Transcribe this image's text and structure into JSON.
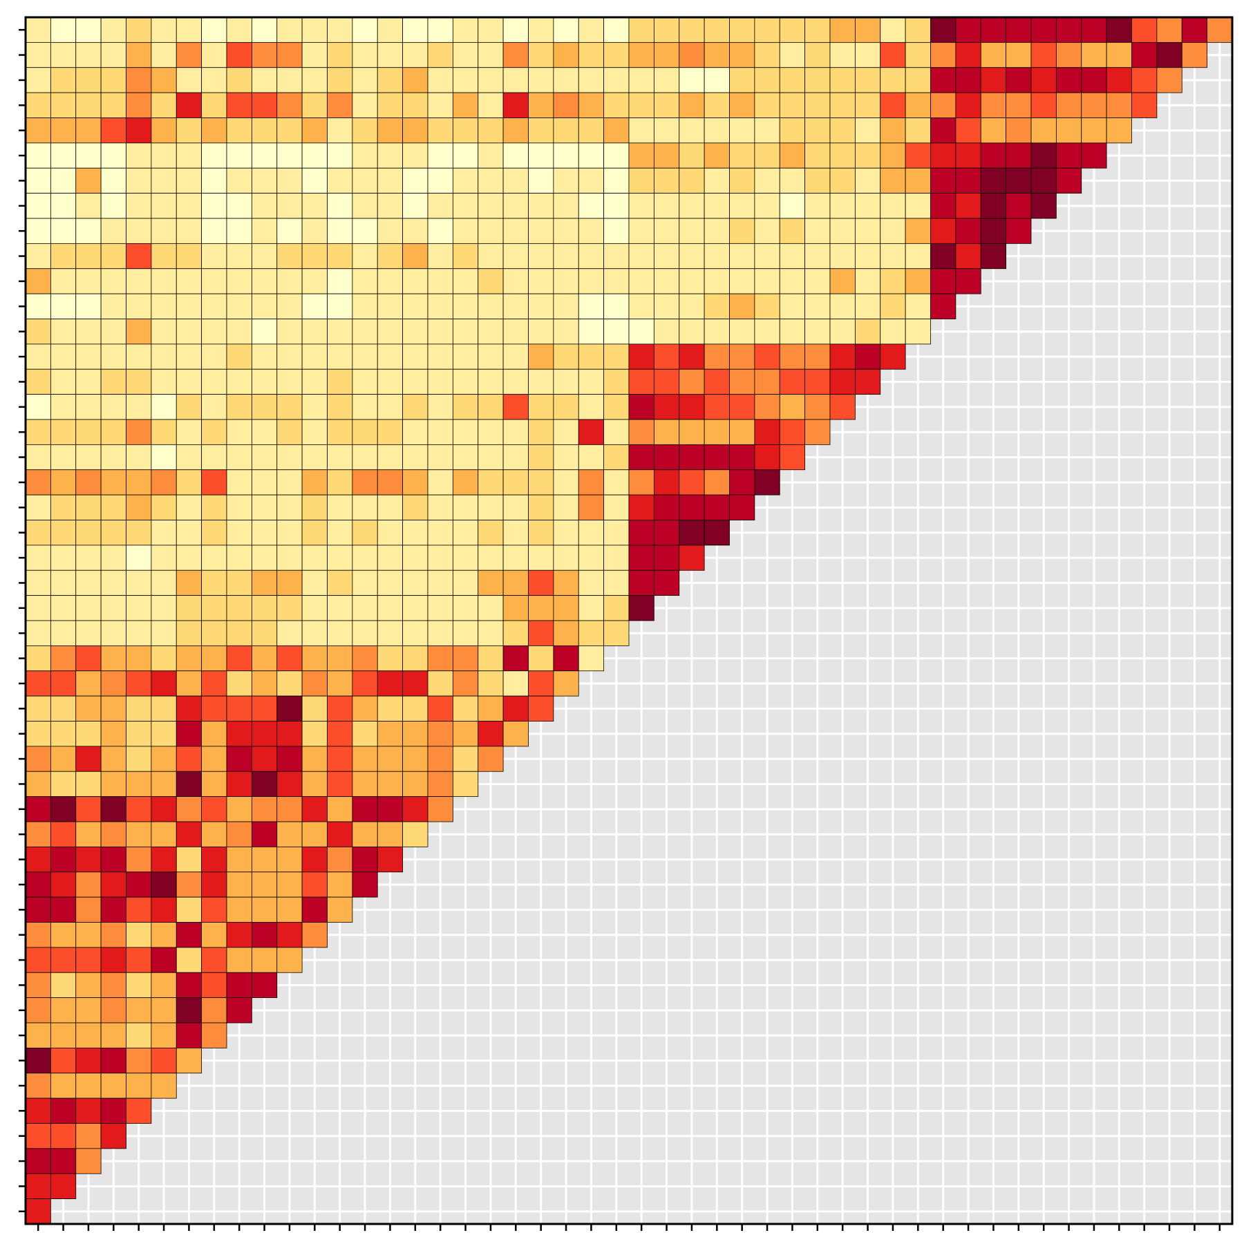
{
  "chart_data": {
    "type": "heatmap",
    "layout": "upper-triangle",
    "grid": true,
    "zlim": [
      1,
      9
    ],
    "colors": [
      "#ffffcc",
      "#ffeda0",
      "#fed976",
      "#feb24c",
      "#fd8d3c",
      "#fc4e2a",
      "#e31a1c",
      "#bd0026",
      "#800026"
    ],
    "values": [
      [
        2,
        1,
        1,
        2,
        3,
        2,
        2,
        1,
        2,
        1,
        2,
        2,
        2,
        1,
        2,
        1,
        1,
        2,
        2,
        1,
        2,
        1,
        2,
        1,
        3,
        3,
        3,
        3,
        3,
        3,
        3,
        3,
        4,
        4,
        2,
        3,
        9,
        8,
        8,
        8,
        8,
        8,
        8,
        9,
        6,
        5,
        8,
        5
      ],
      [
        2,
        2,
        2,
        2,
        4,
        2,
        5,
        2,
        6,
        5,
        5,
        2,
        3,
        2,
        2,
        2,
        3,
        2,
        2,
        5,
        3,
        4,
        3,
        3,
        4,
        4,
        5,
        4,
        4,
        3,
        2,
        3,
        2,
        2,
        6,
        3,
        5,
        7,
        4,
        4,
        6,
        5,
        4,
        4,
        8,
        9,
        5
      ],
      [
        2,
        3,
        3,
        3,
        5,
        4,
        2,
        2,
        3,
        2,
        2,
        2,
        3,
        2,
        3,
        4,
        2,
        2,
        2,
        2,
        2,
        2,
        2,
        2,
        2,
        2,
        1,
        1,
        3,
        3,
        3,
        3,
        3,
        3,
        3,
        3,
        8,
        8,
        7,
        8,
        7,
        8,
        8,
        7,
        6,
        5
      ],
      [
        3,
        3,
        3,
        3,
        5,
        3,
        7,
        3,
        6,
        6,
        5,
        3,
        5,
        2,
        3,
        3,
        2,
        4,
        2,
        7,
        4,
        5,
        4,
        3,
        3,
        3,
        4,
        3,
        4,
        3,
        3,
        3,
        3,
        3,
        6,
        4,
        5,
        7,
        5,
        5,
        6,
        5,
        5,
        5,
        6
      ],
      [
        4,
        4,
        4,
        6,
        7,
        4,
        3,
        4,
        3,
        3,
        3,
        4,
        2,
        3,
        4,
        4,
        3,
        3,
        3,
        4,
        3,
        3,
        3,
        4,
        2,
        2,
        2,
        2,
        2,
        2,
        3,
        3,
        3,
        2,
        4,
        3,
        8,
        6,
        4,
        5,
        4,
        4,
        4,
        4
      ],
      [
        1,
        1,
        1,
        1,
        2,
        2,
        2,
        1,
        1,
        1,
        1,
        1,
        1,
        2,
        2,
        2,
        1,
        1,
        2,
        1,
        1,
        1,
        1,
        1,
        4,
        4,
        3,
        4,
        3,
        3,
        4,
        3,
        3,
        3,
        4,
        6,
        7,
        7,
        8,
        8,
        9,
        8,
        8
      ],
      [
        1,
        1,
        4,
        1,
        2,
        2,
        2,
        1,
        2,
        2,
        2,
        1,
        2,
        2,
        2,
        1,
        1,
        2,
        2,
        2,
        1,
        2,
        2,
        1,
        3,
        3,
        3,
        2,
        3,
        2,
        2,
        3,
        3,
        2,
        4,
        4,
        8,
        8,
        9,
        9,
        9,
        8
      ],
      [
        1,
        1,
        2,
        1,
        2,
        2,
        2,
        1,
        1,
        2,
        2,
        2,
        1,
        2,
        2,
        1,
        2,
        2,
        2,
        2,
        2,
        2,
        1,
        1,
        2,
        2,
        2,
        2,
        2,
        2,
        1,
        2,
        2,
        2,
        2,
        2,
        8,
        7,
        9,
        8,
        9
      ],
      [
        1,
        1,
        1,
        2,
        2,
        2,
        2,
        1,
        1,
        2,
        1,
        2,
        1,
        1,
        2,
        2,
        1,
        2,
        2,
        2,
        2,
        2,
        2,
        1,
        2,
        2,
        2,
        2,
        3,
        2,
        3,
        2,
        2,
        2,
        2,
        4,
        7,
        8,
        9,
        8
      ],
      [
        2,
        3,
        3,
        3,
        6,
        3,
        3,
        2,
        2,
        2,
        3,
        3,
        3,
        2,
        3,
        4,
        2,
        3,
        2,
        2,
        2,
        2,
        2,
        2,
        2,
        2,
        2,
        2,
        2,
        2,
        2,
        2,
        2,
        2,
        2,
        2,
        9,
        7,
        9
      ],
      [
        4,
        2,
        2,
        2,
        2,
        2,
        2,
        2,
        2,
        2,
        2,
        2,
        1,
        2,
        2,
        2,
        2,
        2,
        3,
        2,
        2,
        2,
        2,
        2,
        2,
        2,
        2,
        2,
        2,
        2,
        2,
        2,
        4,
        2,
        3,
        4,
        8,
        8
      ],
      [
        1,
        1,
        1,
        2,
        2,
        2,
        2,
        2,
        2,
        2,
        2,
        1,
        1,
        2,
        2,
        2,
        2,
        2,
        2,
        2,
        2,
        2,
        1,
        1,
        2,
        2,
        2,
        3,
        4,
        3,
        2,
        2,
        2,
        2,
        3,
        2,
        8
      ],
      [
        3,
        2,
        2,
        2,
        4,
        2,
        2,
        2,
        2,
        1,
        2,
        2,
        2,
        2,
        2,
        2,
        2,
        2,
        2,
        2,
        2,
        2,
        1,
        1,
        1,
        2,
        2,
        2,
        2,
        2,
        2,
        2,
        2,
        3,
        2,
        2
      ],
      [
        2,
        2,
        2,
        2,
        2,
        2,
        2,
        2,
        3,
        2,
        2,
        2,
        2,
        2,
        2,
        2,
        2,
        2,
        2,
        2,
        4,
        3,
        3,
        3,
        7,
        6,
        7,
        5,
        5,
        6,
        5,
        5,
        7,
        8,
        7
      ],
      [
        3,
        2,
        2,
        3,
        3,
        2,
        2,
        2,
        2,
        2,
        2,
        2,
        3,
        2,
        2,
        2,
        2,
        2,
        2,
        2,
        2,
        2,
        2,
        3,
        6,
        6,
        5,
        6,
        5,
        5,
        6,
        6,
        7,
        7
      ],
      [
        1,
        2,
        2,
        2,
        2,
        1,
        3,
        2,
        3,
        3,
        3,
        2,
        3,
        2,
        2,
        3,
        2,
        3,
        3,
        6,
        3,
        3,
        2,
        3,
        8,
        7,
        7,
        6,
        6,
        5,
        4,
        5,
        6
      ],
      [
        3,
        3,
        3,
        3,
        5,
        3,
        2,
        3,
        2,
        2,
        3,
        2,
        3,
        3,
        3,
        2,
        2,
        2,
        2,
        2,
        3,
        2,
        7,
        2,
        5,
        4,
        4,
        4,
        4,
        7,
        6,
        5
      ],
      [
        2,
        2,
        2,
        2,
        2,
        1,
        2,
        2,
        2,
        2,
        2,
        2,
        2,
        2,
        2,
        2,
        2,
        2,
        2,
        2,
        3,
        2,
        2,
        3,
        8,
        8,
        8,
        8,
        8,
        7,
        6
      ],
      [
        5,
        4,
        5,
        4,
        4,
        5,
        3,
        6,
        2,
        2,
        2,
        4,
        3,
        5,
        5,
        4,
        2,
        4,
        3,
        3,
        3,
        2,
        5,
        2,
        5,
        7,
        6,
        5,
        8,
        9
      ],
      [
        2,
        3,
        3,
        3,
        4,
        3,
        2,
        3,
        2,
        2,
        2,
        3,
        2,
        2,
        2,
        3,
        2,
        2,
        2,
        2,
        3,
        2,
        5,
        2,
        7,
        8,
        8,
        8,
        8
      ],
      [
        3,
        3,
        3,
        3,
        3,
        2,
        2,
        3,
        2,
        2,
        2,
        3,
        2,
        3,
        2,
        2,
        2,
        2,
        3,
        2,
        3,
        2,
        2,
        2,
        8,
        8,
        9,
        9
      ],
      [
        2,
        2,
        2,
        2,
        1,
        2,
        2,
        2,
        2,
        2,
        2,
        2,
        2,
        2,
        2,
        2,
        2,
        2,
        2,
        2,
        2,
        2,
        2,
        2,
        8,
        8,
        7
      ],
      [
        2,
        2,
        2,
        2,
        2,
        2,
        4,
        3,
        3,
        4,
        4,
        2,
        3,
        2,
        2,
        2,
        2,
        2,
        4,
        4,
        6,
        4,
        2,
        2,
        8,
        8
      ],
      [
        2,
        2,
        2,
        2,
        2,
        2,
        3,
        3,
        3,
        3,
        3,
        2,
        2,
        2,
        2,
        2,
        2,
        2,
        2,
        4,
        4,
        4,
        2,
        3,
        9
      ],
      [
        2,
        2,
        2,
        2,
        2,
        2,
        3,
        3,
        3,
        3,
        2,
        2,
        2,
        2,
        2,
        2,
        2,
        2,
        2,
        3,
        6,
        4,
        3,
        3
      ],
      [
        3,
        5,
        6,
        4,
        4,
        3,
        4,
        4,
        6,
        4,
        6,
        4,
        4,
        5,
        3,
        3,
        5,
        5,
        3,
        8,
        3,
        8,
        2
      ],
      [
        6,
        6,
        4,
        5,
        6,
        7,
        4,
        6,
        3,
        4,
        3,
        5,
        4,
        6,
        7,
        7,
        3,
        5,
        3,
        2,
        6,
        4
      ],
      [
        3,
        3,
        4,
        4,
        3,
        3,
        7,
        6,
        6,
        6,
        9,
        3,
        6,
        4,
        3,
        3,
        6,
        3,
        4,
        7,
        6
      ],
      [
        3,
        3,
        3,
        4,
        3,
        3,
        8,
        4,
        7,
        7,
        7,
        3,
        6,
        3,
        4,
        4,
        5,
        4,
        7,
        4
      ],
      [
        5,
        4,
        7,
        4,
        3,
        4,
        6,
        4,
        8,
        7,
        8,
        4,
        6,
        4,
        4,
        4,
        5,
        3,
        5
      ],
      [
        4,
        3,
        3,
        4,
        4,
        4,
        9,
        4,
        7,
        9,
        7,
        4,
        6,
        4,
        4,
        4,
        5,
        3
      ],
      [
        8,
        9,
        6,
        9,
        6,
        7,
        5,
        6,
        4,
        5,
        5,
        7,
        4,
        8,
        8,
        7,
        5
      ],
      [
        5,
        6,
        4,
        5,
        4,
        4,
        7,
        4,
        5,
        8,
        4,
        4,
        7,
        4,
        4,
        3
      ],
      [
        7,
        8,
        7,
        8,
        5,
        7,
        3,
        7,
        4,
        4,
        4,
        7,
        5,
        8,
        7
      ],
      [
        8,
        7,
        5,
        7,
        8,
        9,
        5,
        7,
        4,
        4,
        4,
        6,
        4,
        8
      ],
      [
        8,
        8,
        5,
        8,
        6,
        7,
        3,
        6,
        4,
        4,
        4,
        8,
        4
      ],
      [
        5,
        4,
        4,
        5,
        3,
        4,
        8,
        4,
        7,
        8,
        7,
        5
      ],
      [
        6,
        6,
        6,
        7,
        6,
        8,
        3,
        6,
        4,
        4,
        4
      ],
      [
        5,
        3,
        4,
        5,
        3,
        4,
        8,
        6,
        8,
        8
      ],
      [
        5,
        4,
        4,
        5,
        4,
        4,
        9,
        5,
        8
      ],
      [
        4,
        4,
        4,
        4,
        3,
        4,
        8,
        5
      ],
      [
        9,
        6,
        7,
        8,
        5,
        6,
        4
      ],
      [
        5,
        4,
        4,
        4,
        4,
        4
      ],
      [
        7,
        8,
        7,
        8,
        6
      ],
      [
        6,
        6,
        5,
        7
      ],
      [
        8,
        8,
        5
      ],
      [
        7,
        7
      ],
      [
        7
      ]
    ]
  }
}
